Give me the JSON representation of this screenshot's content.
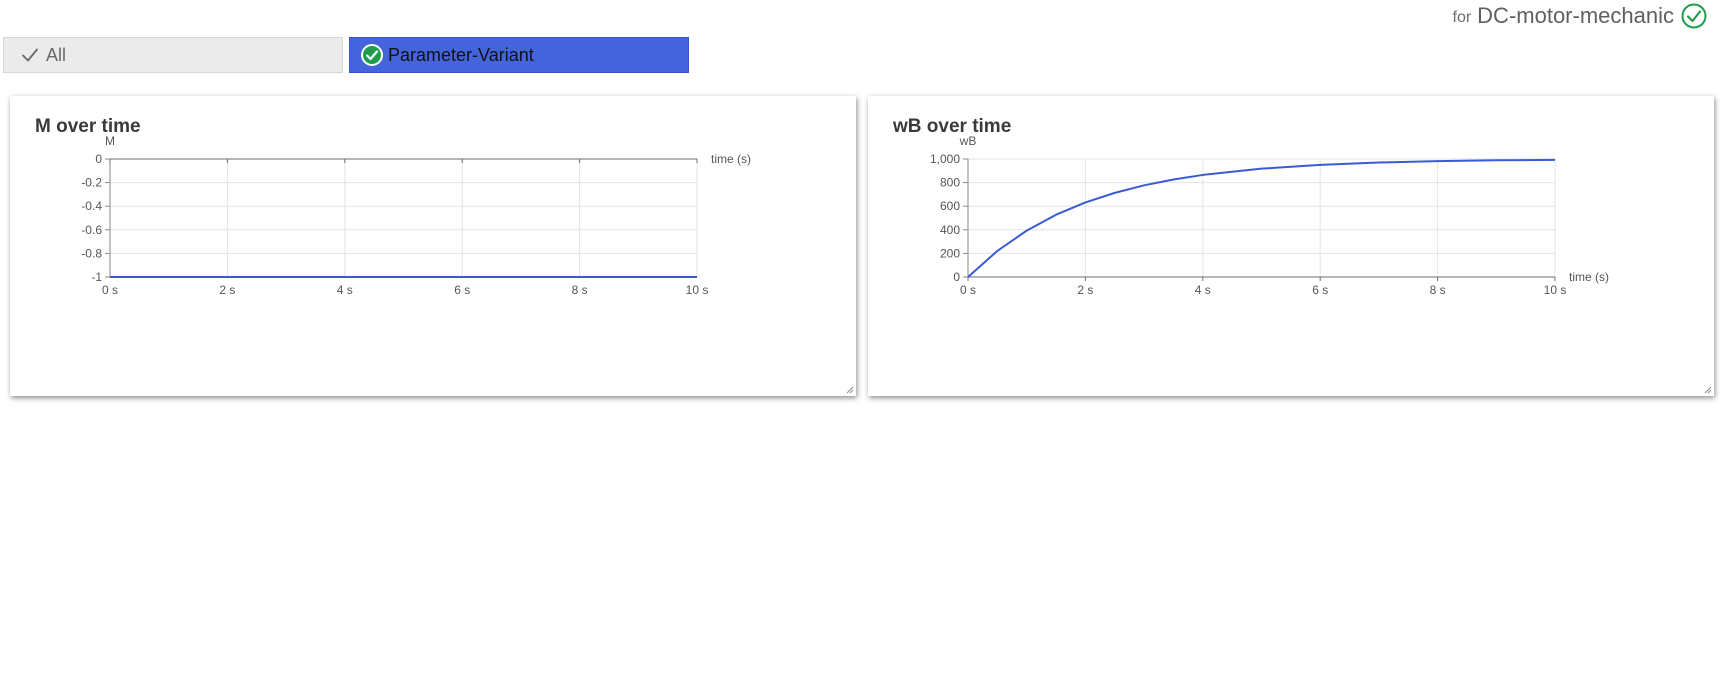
{
  "header": {
    "for_label": "for",
    "model_name": "DC-motor-mechanic",
    "status_icon": "check-circle-outline-icon",
    "status_color": "#1e9e4a"
  },
  "tabs": [
    {
      "label": "All",
      "icon": "checkmark-icon",
      "active": false
    },
    {
      "label": "Parameter-Variant",
      "icon": "check-circle-icon",
      "active": true,
      "color": "#4464dc"
    }
  ],
  "chart_data": [
    {
      "type": "line",
      "title": "M over time",
      "ylabel": "M",
      "xlabel": "time (s)",
      "xlim": [
        0,
        10
      ],
      "ylim": [
        -1,
        0
      ],
      "x_ticks": [
        "0 s",
        "2 s",
        "4 s",
        "6 s",
        "8 s",
        "10 s"
      ],
      "y_ticks": [
        "0",
        "-0.2",
        "-0.4",
        "-0.6",
        "-0.8",
        "-1"
      ],
      "grid": true,
      "series": [
        {
          "color": "#3b5bd6",
          "x": [
            0,
            2,
            4,
            6,
            8,
            10
          ],
          "values": [
            -1,
            -1,
            -1,
            -1,
            -1,
            -1
          ]
        }
      ]
    },
    {
      "type": "line",
      "title": "wB over time",
      "ylabel": "wB",
      "xlabel": "time (s)",
      "xlim": [
        0,
        10
      ],
      "ylim": [
        0,
        1000
      ],
      "x_ticks": [
        "0 s",
        "2 s",
        "4 s",
        "6 s",
        "8 s",
        "10 s"
      ],
      "y_ticks": [
        "1,000",
        "800",
        "600",
        "400",
        "200",
        "0"
      ],
      "grid": true,
      "series": [
        {
          "color": "#3b5bd6",
          "x": [
            0,
            0.5,
            1,
            1.5,
            2,
            2.5,
            3,
            3.5,
            4,
            5,
            6,
            7,
            8,
            9,
            10
          ],
          "values": [
            0,
            221,
            393,
            528,
            632,
            713,
            777,
            826,
            865,
            918,
            950,
            970,
            982,
            989,
            993
          ]
        }
      ]
    }
  ]
}
